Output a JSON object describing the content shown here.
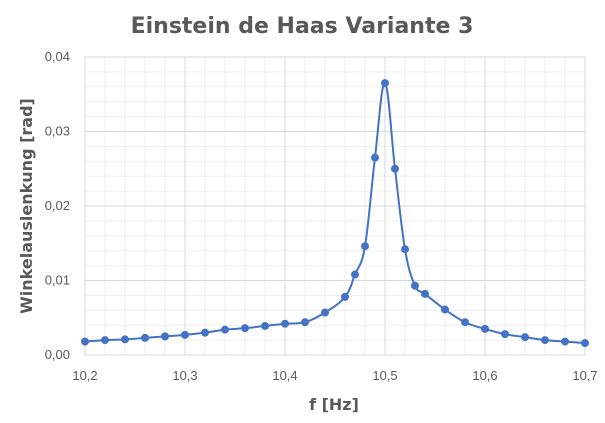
{
  "chart_data": {
    "type": "scatter",
    "title": "Einstein de Haas Variante 3",
    "xlabel": "f [Hz]",
    "ylabel": "Winkelauslenkung [rad]",
    "xlim": [
      10.2,
      10.7
    ],
    "ylim": [
      0,
      0.04
    ],
    "x_major_step": 0.1,
    "y_major_step": 0.01,
    "x_tick_labels": [
      "10,2",
      "10,3",
      "10,4",
      "10,5",
      "10,6",
      "10,7"
    ],
    "y_tick_labels": [
      "0,00",
      "0,01",
      "0,02",
      "0,03",
      "0,04"
    ],
    "grid": true,
    "minor_grid": true,
    "legend": "none",
    "line_style": "smoothed",
    "series_color": "#4472c4",
    "series": [
      {
        "x": [
          10.2,
          10.22,
          10.24,
          10.26,
          10.28,
          10.3,
          10.32,
          10.34,
          10.36,
          10.38,
          10.4,
          10.42,
          10.44,
          10.46,
          10.47,
          10.48,
          10.49,
          10.5,
          10.51,
          10.52,
          10.53,
          10.54,
          10.56,
          10.58,
          10.6,
          10.62,
          10.64,
          10.66,
          10.68,
          10.7
        ],
        "y": [
          0.0018,
          0.002,
          0.0021,
          0.0023,
          0.0025,
          0.0027,
          0.003,
          0.0034,
          0.0036,
          0.0039,
          0.0042,
          0.0044,
          0.0057,
          0.0078,
          0.0108,
          0.0146,
          0.0265,
          0.0365,
          0.025,
          0.0142,
          0.0093,
          0.0082,
          0.0061,
          0.0044,
          0.0035,
          0.0028,
          0.0024,
          0.002,
          0.0018,
          0.0016
        ]
      }
    ]
  }
}
